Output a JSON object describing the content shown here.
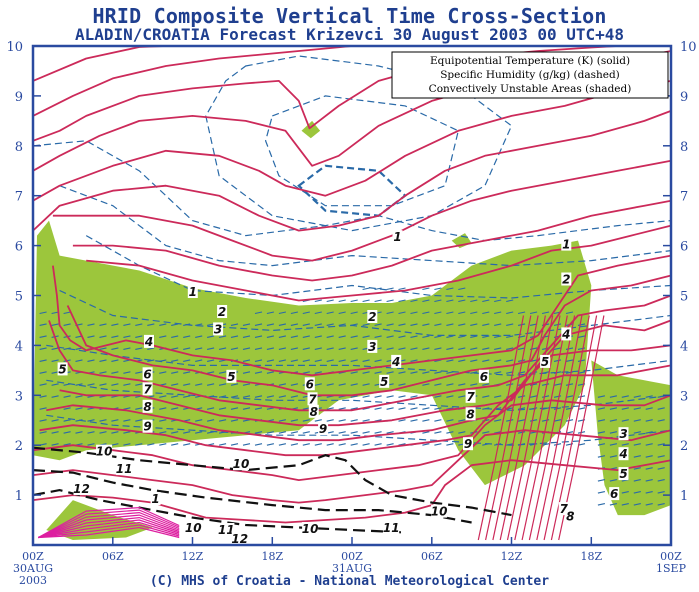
{
  "header": {
    "title": "HRID Composite Vertical Time Cross-Section",
    "subtitle": "ALADIN/CROATIA Forecast Krizevci 30 August 2003 00 UTC+48"
  },
  "footer": {
    "credit": "(C) MHS of Croatia - National Meteorological Center"
  },
  "colors": {
    "frame": "#2a4aa0",
    "theta_e_solid": "#cc2a5a",
    "humidity_dashed": "#2a6aa8",
    "shading": "#9cc63c",
    "high_theta": "#111111"
  },
  "chart_data": {
    "type": "contour",
    "title": "HRID Composite Vertical Time Cross-Section",
    "subtitle": "ALADIN/CROATIA Forecast Krizevci 30 August 2003 00 UTC+48",
    "legend": {
      "placement": "top-right",
      "entries": [
        "Equipotential Temperature (K) (solid)",
        "Specific Humidity (g/kg) (dashed)",
        "Convectively Unstable Areas (shaded)"
      ]
    },
    "y_axis": {
      "ticks": [
        "1",
        "2",
        "3",
        "4",
        "5",
        "6",
        "7",
        "8",
        "9",
        "10"
      ],
      "ylim": [
        0,
        10
      ]
    },
    "x_axis": {
      "ticks": [
        {
          "hour": 0,
          "label": "00Z",
          "sub1": "30AUG",
          "sub2": "2003"
        },
        {
          "hour": 6,
          "label": "06Z",
          "sub1": "",
          "sub2": ""
        },
        {
          "hour": 12,
          "label": "12Z",
          "sub1": "",
          "sub2": ""
        },
        {
          "hour": 18,
          "label": "18Z",
          "sub1": "",
          "sub2": ""
        },
        {
          "hour": 24,
          "label": "00Z",
          "sub1": "31AUG",
          "sub2": ""
        },
        {
          "hour": 30,
          "label": "06Z",
          "sub1": "",
          "sub2": ""
        },
        {
          "hour": 36,
          "label": "12Z",
          "sub1": "",
          "sub2": ""
        },
        {
          "hour": 42,
          "label": "18Z",
          "sub1": "",
          "sub2": ""
        },
        {
          "hour": 48,
          "label": "00Z",
          "sub1": "1SEP",
          "sub2": ""
        }
      ],
      "xlim": [
        0,
        48
      ]
    },
    "contour_labels": [
      {
        "text": "1",
        "t": 12.1,
        "z": 5.05
      },
      {
        "text": "1",
        "t": 27.5,
        "z": 6.15
      },
      {
        "text": "1",
        "t": 40.2,
        "z": 6.0
      },
      {
        "text": "1",
        "t": 9.3,
        "z": 0.9
      },
      {
        "text": "2",
        "t": 14.3,
        "z": 4.65
      },
      {
        "text": "2",
        "t": 25.6,
        "z": 4.55
      },
      {
        "text": "2",
        "t": 40.2,
        "z": 5.3
      },
      {
        "text": "3",
        "t": 14.0,
        "z": 4.3
      },
      {
        "text": "3",
        "t": 25.6,
        "z": 3.95
      },
      {
        "text": "3",
        "t": 44.5,
        "z": 2.2
      },
      {
        "text": "4",
        "t": 8.8,
        "z": 4.05
      },
      {
        "text": "4",
        "t": 27.4,
        "z": 3.65
      },
      {
        "text": "4",
        "t": 40.2,
        "z": 4.2
      },
      {
        "text": "4",
        "t": 44.5,
        "z": 1.8
      },
      {
        "text": "5",
        "t": 2.3,
        "z": 3.5
      },
      {
        "text": "5",
        "t": 15.0,
        "z": 3.35
      },
      {
        "text": "5",
        "t": 26.5,
        "z": 3.25
      },
      {
        "text": "5",
        "t": 38.6,
        "z": 3.65
      },
      {
        "text": "5",
        "t": 44.5,
        "z": 1.4
      },
      {
        "text": "6",
        "t": 8.7,
        "z": 3.4
      },
      {
        "text": "6",
        "t": 20.9,
        "z": 3.2
      },
      {
        "text": "6",
        "t": 34.0,
        "z": 3.35
      },
      {
        "text": "6",
        "t": 43.8,
        "z": 1.0
      },
      {
        "text": "7",
        "t": 8.7,
        "z": 3.1
      },
      {
        "text": "7",
        "t": 21.1,
        "z": 2.9
      },
      {
        "text": "7",
        "t": 33.0,
        "z": 2.95
      },
      {
        "text": "7",
        "t": 40.0,
        "z": 0.7
      },
      {
        "text": "8",
        "t": 8.7,
        "z": 2.75
      },
      {
        "text": "8",
        "t": 21.2,
        "z": 2.65
      },
      {
        "text": "8",
        "t": 33.0,
        "z": 2.6
      },
      {
        "text": "8",
        "t": 40.5,
        "z": 0.55
      },
      {
        "text": "9",
        "t": 8.7,
        "z": 2.35
      },
      {
        "text": "9",
        "t": 21.9,
        "z": 2.3
      },
      {
        "text": "9",
        "t": 32.8,
        "z": 2.0
      },
      {
        "text": "10",
        "t": 5.2,
        "z": 1.85
      },
      {
        "text": "10",
        "t": 15.5,
        "z": 1.6
      },
      {
        "text": "10",
        "t": 20.7,
        "z": 0.3
      },
      {
        "text": "10",
        "t": 30.4,
        "z": 0.65
      },
      {
        "text": "11",
        "t": 6.7,
        "z": 1.5
      },
      {
        "text": "11",
        "t": 14.4,
        "z": 0.28
      },
      {
        "text": "11",
        "t": 26.8,
        "z": 0.32
      },
      {
        "text": "12",
        "t": 3.5,
        "z": 1.1
      },
      {
        "text": "12",
        "t": 15.4,
        "z": 0.1
      },
      {
        "text": "10",
        "t": 11.9,
        "z": 0.32
      }
    ],
    "theta_e_lines": [
      [
        [
          0,
          9.3
        ],
        [
          4,
          9.75
        ],
        [
          8,
          9.98
        ],
        [
          10,
          10.0
        ]
      ],
      [
        [
          0,
          8.6
        ],
        [
          3,
          9.0
        ],
        [
          6,
          9.35
        ],
        [
          10,
          9.6
        ],
        [
          14,
          9.75
        ],
        [
          18,
          9.85
        ],
        [
          22,
          9.95
        ],
        [
          24,
          10.0
        ]
      ],
      [
        [
          0,
          8.1
        ],
        [
          2,
          8.3
        ],
        [
          4,
          8.6
        ],
        [
          8,
          9.0
        ],
        [
          12,
          9.15
        ],
        [
          16,
          9.25
        ],
        [
          18.5,
          9.3
        ],
        [
          20,
          8.9
        ],
        [
          20.8,
          8.35
        ],
        [
          23,
          8.8
        ],
        [
          26,
          9.3
        ],
        [
          30,
          9.6
        ],
        [
          34,
          9.8
        ],
        [
          38,
          9.9
        ],
        [
          42,
          9.97
        ],
        [
          44,
          10.0
        ]
      ],
      [
        [
          0,
          7.5
        ],
        [
          2,
          7.8
        ],
        [
          5,
          8.2
        ],
        [
          8,
          8.5
        ],
        [
          12,
          8.6
        ],
        [
          16,
          8.5
        ],
        [
          19,
          8.3
        ],
        [
          21,
          7.6
        ],
        [
          23,
          7.8
        ],
        [
          26,
          8.4
        ],
        [
          30,
          8.9
        ],
        [
          34,
          9.2
        ],
        [
          38,
          9.4
        ],
        [
          42,
          9.6
        ],
        [
          46,
          9.8
        ],
        [
          48,
          9.9
        ]
      ],
      [
        [
          0,
          6.9
        ],
        [
          2,
          7.2
        ],
        [
          6,
          7.6
        ],
        [
          10,
          7.9
        ],
        [
          14,
          7.8
        ],
        [
          17,
          7.5
        ],
        [
          19,
          7.2
        ],
        [
          22,
          7.0
        ],
        [
          25,
          7.3
        ],
        [
          28,
          7.8
        ],
        [
          32,
          8.3
        ],
        [
          36,
          8.6
        ],
        [
          40,
          8.8
        ],
        [
          44,
          9.1
        ],
        [
          48,
          9.3
        ]
      ],
      [
        [
          0,
          6.3
        ],
        [
          2,
          6.8
        ],
        [
          6,
          7.1
        ],
        [
          10,
          7.2
        ],
        [
          14,
          7.0
        ],
        [
          17,
          6.6
        ],
        [
          20,
          6.3
        ],
        [
          23,
          6.4
        ],
        [
          26,
          6.6
        ],
        [
          28,
          7.0
        ],
        [
          31,
          7.5
        ],
        [
          34,
          7.8
        ],
        [
          38,
          8.0
        ],
        [
          42,
          8.2
        ],
        [
          46,
          8.5
        ],
        [
          48,
          8.7
        ]
      ],
      [
        [
          1.5,
          6.6
        ],
        [
          4,
          6.6
        ],
        [
          8,
          6.6
        ],
        [
          12,
          6.4
        ],
        [
          15,
          6.1
        ],
        [
          18,
          5.8
        ],
        [
          21,
          5.7
        ],
        [
          24,
          5.9
        ],
        [
          27,
          6.2
        ],
        [
          30,
          6.6
        ],
        [
          33,
          6.9
        ],
        [
          36,
          7.1
        ],
        [
          40,
          7.3
        ],
        [
          44,
          7.5
        ],
        [
          48,
          7.7
        ]
      ],
      [
        [
          3,
          6.0
        ],
        [
          6,
          6.0
        ],
        [
          10,
          5.9
        ],
        [
          14,
          5.6
        ],
        [
          18,
          5.4
        ],
        [
          21,
          5.3
        ],
        [
          24,
          5.4
        ],
        [
          27,
          5.6
        ],
        [
          30,
          5.9
        ],
        [
          34,
          6.1
        ],
        [
          38,
          6.3
        ],
        [
          42,
          6.6
        ],
        [
          46,
          6.8
        ],
        [
          48,
          6.9
        ]
      ],
      [
        [
          4,
          5.7
        ],
        [
          8,
          5.6
        ],
        [
          12,
          5.3
        ],
        [
          16,
          5.1
        ],
        [
          20,
          4.9
        ],
        [
          24,
          5.0
        ],
        [
          28,
          5.1
        ],
        [
          32,
          5.3
        ],
        [
          36,
          5.6
        ],
        [
          39,
          5.9
        ],
        [
          42,
          6.0
        ],
        [
          45,
          6.2
        ],
        [
          48,
          6.4
        ]
      ],
      [
        [
          1.5,
          5.6
        ],
        [
          1.8,
          5.0
        ],
        [
          2.0,
          4.4
        ],
        [
          2.8,
          4.1
        ],
        [
          4,
          3.9
        ],
        [
          7,
          4.1
        ],
        [
          9,
          4.0
        ],
        [
          12,
          3.8
        ],
        [
          15,
          3.7
        ],
        [
          18,
          3.5
        ],
        [
          21,
          3.4
        ],
        [
          24,
          3.5
        ],
        [
          27,
          3.6
        ],
        [
          30,
          3.7
        ],
        [
          33,
          3.8
        ],
        [
          36,
          3.9
        ],
        [
          38,
          4.2
        ],
        [
          39.5,
          4.8
        ],
        [
          41,
          5.4
        ],
        [
          44,
          5.6
        ],
        [
          48,
          5.8
        ]
      ],
      [
        [
          2.6,
          4.8
        ],
        [
          4,
          4.0
        ],
        [
          6,
          3.8
        ],
        [
          9,
          3.6
        ],
        [
          12,
          3.5
        ],
        [
          15,
          3.3
        ],
        [
          18,
          3.2
        ],
        [
          21,
          3.0
        ],
        [
          24,
          3.0
        ],
        [
          27,
          3.1
        ],
        [
          30,
          3.3
        ],
        [
          33,
          3.5
        ],
        [
          36,
          3.6
        ],
        [
          37.5,
          3.7
        ],
        [
          38.5,
          4.2
        ],
        [
          40,
          4.8
        ],
        [
          42,
          5.1
        ],
        [
          45,
          5.2
        ],
        [
          48,
          5.4
        ]
      ],
      [
        [
          1.2,
          4.5
        ],
        [
          2,
          3.9
        ],
        [
          3,
          3.5
        ],
        [
          5,
          3.4
        ],
        [
          8,
          3.3
        ],
        [
          11,
          3.1
        ],
        [
          14,
          2.9
        ],
        [
          17,
          2.8
        ],
        [
          20,
          2.7
        ],
        [
          24,
          2.7
        ],
        [
          28,
          2.9
        ],
        [
          32,
          3.1
        ],
        [
          35,
          3.2
        ],
        [
          37,
          3.4
        ],
        [
          39,
          4.0
        ],
        [
          41,
          4.6
        ],
        [
          43,
          4.7
        ],
        [
          46,
          4.8
        ],
        [
          48,
          5.0
        ]
      ],
      [
        [
          2,
          3.1
        ],
        [
          4,
          3.0
        ],
        [
          8,
          3.0
        ],
        [
          11,
          2.8
        ],
        [
          14,
          2.6
        ],
        [
          17,
          2.5
        ],
        [
          20,
          2.4
        ],
        [
          23,
          2.4
        ],
        [
          27,
          2.5
        ],
        [
          31,
          2.7
        ],
        [
          34,
          2.8
        ],
        [
          36,
          2.9
        ],
        [
          38,
          3.6
        ],
        [
          40,
          4.2
        ],
        [
          43,
          4.4
        ],
        [
          46,
          4.3
        ],
        [
          48,
          4.5
        ]
      ],
      [
        [
          1,
          2.7
        ],
        [
          3,
          2.8
        ],
        [
          7,
          2.7
        ],
        [
          11,
          2.5
        ],
        [
          14,
          2.3
        ],
        [
          17,
          2.2
        ],
        [
          20,
          2.1
        ],
        [
          23,
          2.1
        ],
        [
          26,
          2.2
        ],
        [
          30,
          2.3
        ],
        [
          33,
          2.5
        ],
        [
          35,
          2.6
        ],
        [
          37,
          3.3
        ],
        [
          39,
          3.8
        ],
        [
          42,
          3.9
        ],
        [
          45,
          3.9
        ],
        [
          48,
          4.0
        ]
      ],
      [
        [
          0.5,
          2.3
        ],
        [
          3,
          2.4
        ],
        [
          7,
          2.3
        ],
        [
          10,
          2.2
        ],
        [
          13,
          2.0
        ],
        [
          16,
          1.9
        ],
        [
          19,
          1.8
        ],
        [
          22,
          1.8
        ],
        [
          25,
          1.9
        ],
        [
          28,
          2.0
        ],
        [
          31,
          2.1
        ],
        [
          33,
          2.2
        ],
        [
          35,
          2.8
        ],
        [
          37,
          3.2
        ],
        [
          40,
          3.4
        ],
        [
          44,
          3.4
        ],
        [
          48,
          3.6
        ]
      ],
      [
        [
          0,
          1.9
        ],
        [
          3,
          2.0
        ],
        [
          6,
          1.9
        ],
        [
          9,
          1.8
        ],
        [
          12,
          1.6
        ],
        [
          15,
          1.5
        ],
        [
          18,
          1.4
        ],
        [
          20,
          1.3
        ],
        [
          23,
          1.4
        ],
        [
          26,
          1.5
        ],
        [
          29,
          1.6
        ],
        [
          32,
          1.8
        ],
        [
          34,
          2.4
        ],
        [
          36,
          2.8
        ],
        [
          39,
          2.9
        ],
        [
          43,
          2.8
        ],
        [
          46,
          2.8
        ],
        [
          48,
          3.0
        ]
      ],
      [
        [
          0,
          1.4
        ],
        [
          3,
          1.5
        ],
        [
          6,
          1.4
        ],
        [
          9,
          1.3
        ],
        [
          12,
          1.2
        ],
        [
          15,
          1.0
        ],
        [
          18,
          0.9
        ],
        [
          20,
          0.85
        ],
        [
          22,
          0.9
        ],
        [
          25,
          1.0
        ],
        [
          28,
          1.1
        ],
        [
          30,
          1.2
        ],
        [
          32,
          1.7
        ],
        [
          34,
          2.2
        ],
        [
          37,
          2.3
        ],
        [
          41,
          2.2
        ],
        [
          45,
          2.1
        ],
        [
          48,
          2.3
        ]
      ],
      [
        [
          0,
          0.9
        ],
        [
          3,
          1.0
        ],
        [
          6,
          0.95
        ],
        [
          9,
          0.85
        ],
        [
          11,
          0.7
        ],
        [
          13,
          0.55
        ],
        [
          16,
          0.5
        ],
        [
          19,
          0.45
        ],
        [
          22,
          0.5
        ],
        [
          25,
          0.55
        ],
        [
          28,
          0.65
        ],
        [
          30,
          0.8
        ],
        [
          31,
          1.2
        ],
        [
          33,
          1.6
        ],
        [
          36,
          1.7
        ],
        [
          40,
          1.6
        ],
        [
          44,
          1.5
        ],
        [
          48,
          1.7
        ]
      ]
    ]
  }
}
